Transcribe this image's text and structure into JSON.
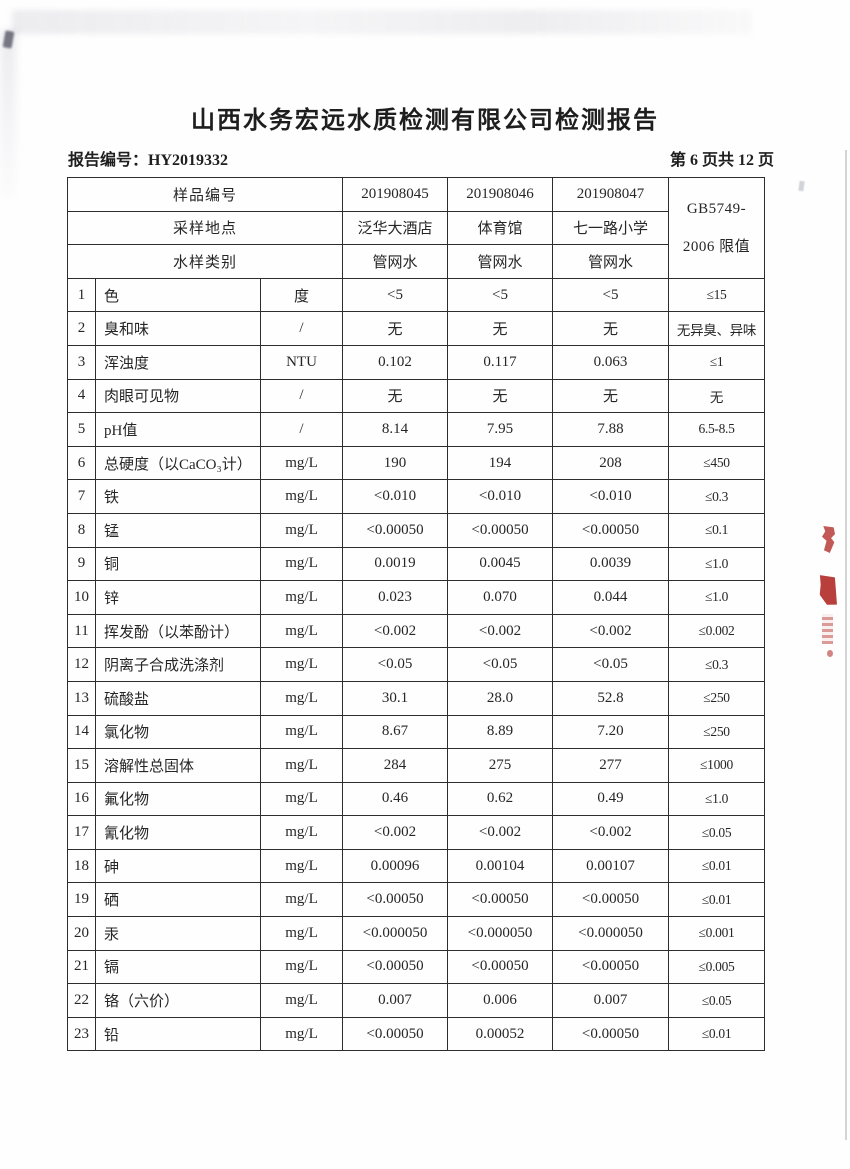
{
  "page": {
    "title": "山西水务宏远水质检测有限公司检测报告",
    "report_no_label": "报告编号：",
    "report_no": "HY2019332",
    "page_indicator": "第 6 页共 12 页"
  },
  "table": {
    "header_rows": [
      {
        "label": "样品编号",
        "values": [
          "201908045",
          "201908046",
          "201908047"
        ]
      },
      {
        "label": "采样地点",
        "values": [
          "泛华大酒店",
          "体育馆",
          "七一路小学"
        ]
      },
      {
        "label": "水样类别",
        "values": [
          "管网水",
          "管网水",
          "管网水"
        ]
      }
    ],
    "limit_header": [
      "GB5749-",
      "2006 限值"
    ],
    "rows": [
      {
        "no": "1",
        "name": "色",
        "unit": "度",
        "v1": "<5",
        "v2": "<5",
        "v3": "<5",
        "limit": "≤15"
      },
      {
        "no": "2",
        "name": "臭和味",
        "unit": "/",
        "v1": "无",
        "v2": "无",
        "v3": "无",
        "limit": "无异臭、异味"
      },
      {
        "no": "3",
        "name": "浑浊度",
        "unit": "NTU",
        "v1": "0.102",
        "v2": "0.117",
        "v3": "0.063",
        "limit": "≤1"
      },
      {
        "no": "4",
        "name": "肉眼可见物",
        "unit": "/",
        "v1": "无",
        "v2": "无",
        "v3": "无",
        "limit": "无"
      },
      {
        "no": "5",
        "name": "pH值",
        "unit": "/",
        "v1": "8.14",
        "v2": "7.95",
        "v3": "7.88",
        "limit": "6.5-8.5"
      },
      {
        "no": "6",
        "name": "总硬度（以CaCO₃计）",
        "unit": "mg/L",
        "v1": "190",
        "v2": "194",
        "v3": "208",
        "limit": "≤450"
      },
      {
        "no": "7",
        "name": "铁",
        "unit": "mg/L",
        "v1": "<0.010",
        "v2": "<0.010",
        "v3": "<0.010",
        "limit": "≤0.3"
      },
      {
        "no": "8",
        "name": "锰",
        "unit": "mg/L",
        "v1": "<0.00050",
        "v2": "<0.00050",
        "v3": "<0.00050",
        "limit": "≤0.1"
      },
      {
        "no": "9",
        "name": "铜",
        "unit": "mg/L",
        "v1": "0.0019",
        "v2": "0.0045",
        "v3": "0.0039",
        "limit": "≤1.0"
      },
      {
        "no": "10",
        "name": "锌",
        "unit": "mg/L",
        "v1": "0.023",
        "v2": "0.070",
        "v3": "0.044",
        "limit": "≤1.0"
      },
      {
        "no": "11",
        "name": "挥发酚（以苯酚计）",
        "unit": "mg/L",
        "v1": "<0.002",
        "v2": "<0.002",
        "v3": "<0.002",
        "limit": "≤0.002"
      },
      {
        "no": "12",
        "name": "阴离子合成洗涤剂",
        "unit": "mg/L",
        "v1": "<0.05",
        "v2": "<0.05",
        "v3": "<0.05",
        "limit": "≤0.3"
      },
      {
        "no": "13",
        "name": "硫酸盐",
        "unit": "mg/L",
        "v1": "30.1",
        "v2": "28.0",
        "v3": "52.8",
        "limit": "≤250"
      },
      {
        "no": "14",
        "name": "氯化物",
        "unit": "mg/L",
        "v1": "8.67",
        "v2": "8.89",
        "v3": "7.20",
        "limit": "≤250"
      },
      {
        "no": "15",
        "name": "溶解性总固体",
        "unit": "mg/L",
        "v1": "284",
        "v2": "275",
        "v3": "277",
        "limit": "≤1000"
      },
      {
        "no": "16",
        "name": "氟化物",
        "unit": "mg/L",
        "v1": "0.46",
        "v2": "0.62",
        "v3": "0.49",
        "limit": "≤1.0"
      },
      {
        "no": "17",
        "name": "氰化物",
        "unit": "mg/L",
        "v1": "<0.002",
        "v2": "<0.002",
        "v3": "<0.002",
        "limit": "≤0.05"
      },
      {
        "no": "18",
        "name": "砷",
        "unit": "mg/L",
        "v1": "0.00096",
        "v2": "0.00104",
        "v3": "0.00107",
        "limit": "≤0.01"
      },
      {
        "no": "19",
        "name": "硒",
        "unit": "mg/L",
        "v1": "<0.00050",
        "v2": "<0.00050",
        "v3": "<0.00050",
        "limit": "≤0.01"
      },
      {
        "no": "20",
        "name": "汞",
        "unit": "mg/L",
        "v1": "<0.000050",
        "v2": "<0.000050",
        "v3": "<0.000050",
        "limit": "≤0.001"
      },
      {
        "no": "21",
        "name": "镉",
        "unit": "mg/L",
        "v1": "<0.00050",
        "v2": "<0.00050",
        "v3": "<0.00050",
        "limit": "≤0.005"
      },
      {
        "no": "22",
        "name": "铬（六价）",
        "unit": "mg/L",
        "v1": "0.007",
        "v2": "0.006",
        "v3": "0.007",
        "limit": "≤0.05"
      },
      {
        "no": "23",
        "name": "铅",
        "unit": "mg/L",
        "v1": "<0.00050",
        "v2": "0.00052",
        "v3": "<0.00050",
        "limit": "≤0.01"
      }
    ]
  },
  "artifacts": {
    "stamp_color": "#b43531"
  }
}
